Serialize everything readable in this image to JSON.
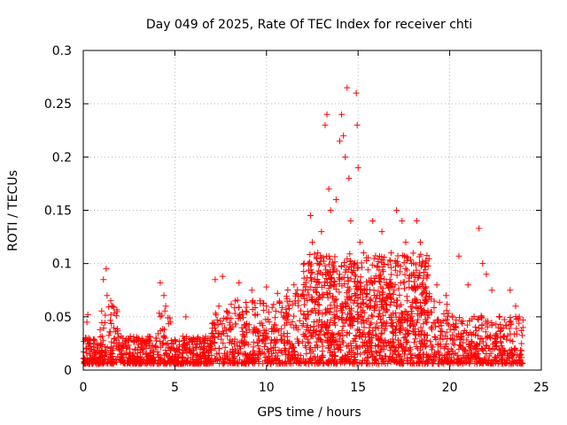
{
  "chart_data": {
    "type": "scatter",
    "title": "Day 049 of 2025, Rate Of TEC Index for receiver chti",
    "xlabel": "GPS time / hours",
    "ylabel": "ROTI / TECUs",
    "xlim": [
      0,
      25
    ],
    "ylim": [
      0,
      0.3
    ],
    "x_ticks": [
      0,
      5,
      10,
      15,
      20,
      25
    ],
    "x_tick_labels": [
      "0",
      "5",
      "10",
      "15",
      "20",
      "25"
    ],
    "y_ticks": [
      0,
      0.05,
      0.1,
      0.15,
      0.2,
      0.25,
      0.3
    ],
    "y_tick_labels": [
      "0",
      "0.05",
      "0.1",
      "0.15",
      "0.2",
      "0.25",
      "0.3"
    ],
    "grid": true,
    "marker": "plus",
    "color": "#ff0000",
    "series": [
      {
        "name": "ROTI",
        "points": [
          [
            0.1,
            0.01
          ],
          [
            0.15,
            0.03
          ],
          [
            0.2,
            0.045
          ],
          [
            0.25,
            0.052
          ],
          [
            0.3,
            0.02
          ],
          [
            1.1,
            0.085
          ],
          [
            1.25,
            0.095
          ],
          [
            1.3,
            0.07
          ],
          [
            1.5,
            0.065
          ],
          [
            1.6,
            0.06
          ],
          [
            4.2,
            0.082
          ],
          [
            4.4,
            0.07
          ],
          [
            4.5,
            0.06
          ],
          [
            5.6,
            0.05
          ],
          [
            7.2,
            0.085
          ],
          [
            7.6,
            0.088
          ],
          [
            7.4,
            0.06
          ],
          [
            8.5,
            0.082
          ],
          [
            9.2,
            0.075
          ],
          [
            10.0,
            0.078
          ],
          [
            10.6,
            0.072
          ],
          [
            11.5,
            0.08
          ],
          [
            12.3,
            0.1
          ],
          [
            12.4,
            0.145
          ],
          [
            12.5,
            0.12
          ],
          [
            12.8,
            0.11
          ],
          [
            13.0,
            0.13
          ],
          [
            13.2,
            0.23
          ],
          [
            13.3,
            0.24
          ],
          [
            13.4,
            0.17
          ],
          [
            13.5,
            0.15
          ],
          [
            13.8,
            0.16
          ],
          [
            14.0,
            0.215
          ],
          [
            14.1,
            0.24
          ],
          [
            14.2,
            0.22
          ],
          [
            14.3,
            0.2
          ],
          [
            14.4,
            0.265
          ],
          [
            14.5,
            0.18
          ],
          [
            14.6,
            0.14
          ],
          [
            14.9,
            0.26
          ],
          [
            14.95,
            0.23
          ],
          [
            15.0,
            0.19
          ],
          [
            15.1,
            0.12
          ],
          [
            15.3,
            0.11
          ],
          [
            15.8,
            0.14
          ],
          [
            16.3,
            0.13
          ],
          [
            16.8,
            0.11
          ],
          [
            17.1,
            0.15
          ],
          [
            17.4,
            0.14
          ],
          [
            17.6,
            0.12
          ],
          [
            18.2,
            0.14
          ],
          [
            18.4,
            0.12
          ],
          [
            18.7,
            0.1
          ],
          [
            19.3,
            0.08
          ],
          [
            19.8,
            0.07
          ],
          [
            20.5,
            0.107
          ],
          [
            21.0,
            0.08
          ],
          [
            21.6,
            0.133
          ],
          [
            21.8,
            0.1
          ],
          [
            22.0,
            0.09
          ],
          [
            22.3,
            0.075
          ],
          [
            23.3,
            0.075
          ],
          [
            23.6,
            0.06
          ],
          [
            23.8,
            0.05
          ]
        ]
      }
    ]
  }
}
